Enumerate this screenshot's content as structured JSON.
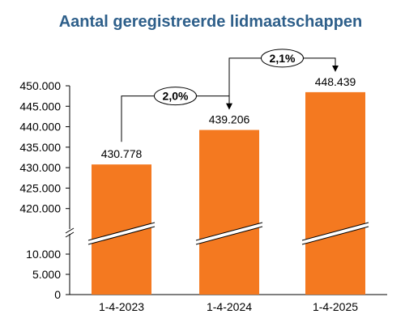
{
  "colors": {
    "title": "#2e5f8a",
    "bar": "#f47920",
    "text": "#000000",
    "axis": "#000000",
    "background": "#ffffff"
  },
  "chart_data": {
    "type": "bar",
    "title": "Aantal geregistreerde lidmaatschappen",
    "xlabel": "",
    "ylabel": "",
    "categories": [
      "1-4-2023",
      "1-4-2024",
      "1-4-2025"
    ],
    "values": [
      430778,
      439206,
      448439
    ],
    "value_labels": [
      "430.778",
      "439.206",
      "448.439"
    ],
    "axis_break": true,
    "upper_axis": {
      "ylim": [
        415000,
        450000
      ],
      "ticks": [
        {
          "value": 420000,
          "label": "420.000"
        },
        {
          "value": 425000,
          "label": "425.000"
        },
        {
          "value": 430000,
          "label": "430.000"
        },
        {
          "value": 435000,
          "label": "435.000"
        },
        {
          "value": 440000,
          "label": "440.000"
        },
        {
          "value": 445000,
          "label": "445.000"
        },
        {
          "value": 450000,
          "label": "450.000"
        }
      ]
    },
    "lower_axis": {
      "ylim": [
        0,
        15000
      ],
      "ticks": [
        {
          "value": 0,
          "label": "0"
        },
        {
          "value": 5000,
          "label": "5.000"
        },
        {
          "value": 10000,
          "label": "10.000"
        }
      ]
    },
    "growth_annotations": [
      {
        "from": 0,
        "to": 1,
        "label": "2,0%"
      },
      {
        "from": 1,
        "to": 2,
        "label": "2,1%"
      }
    ],
    "grid": false,
    "legend": "none"
  }
}
